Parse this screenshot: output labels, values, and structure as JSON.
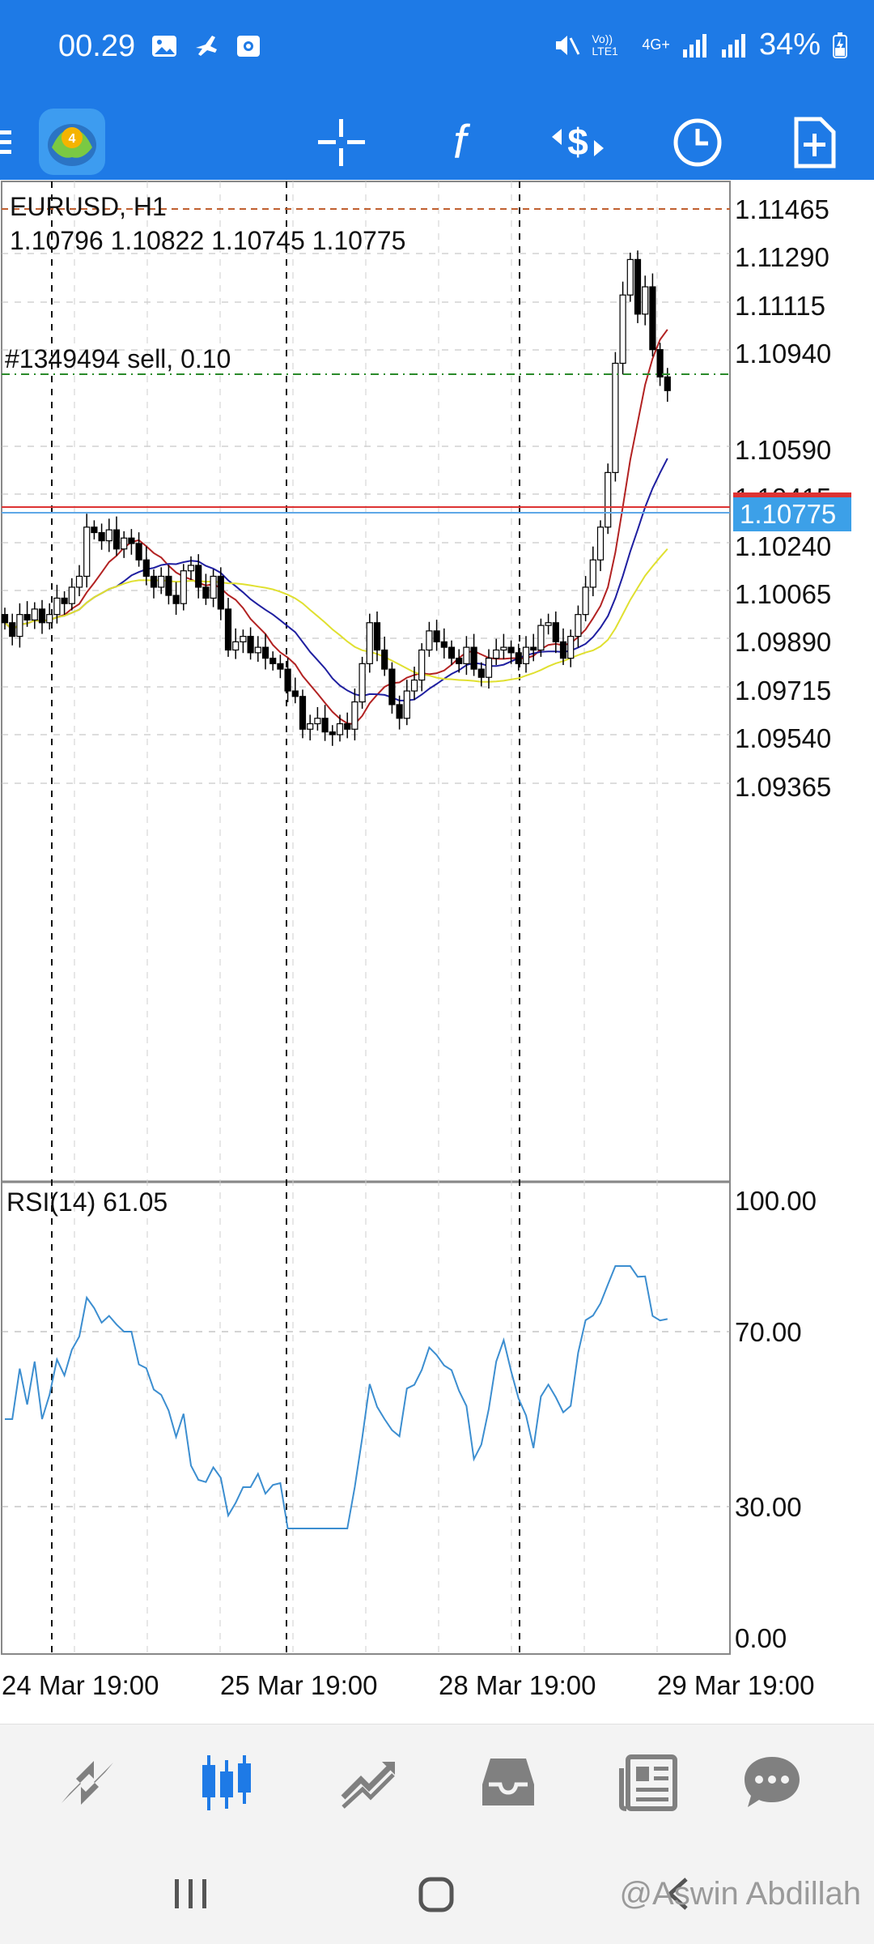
{
  "status_bar": {
    "time": "00.29",
    "battery": "34%",
    "network": [
      "Vo)) LTE1",
      "4G+"
    ]
  },
  "toolbar": {
    "icons": [
      "menu-icon",
      "metatrader-logo",
      "crosshair-icon",
      "indicators-f-icon",
      "trade-icon",
      "timeframe-clock-icon",
      "new-order-icon"
    ]
  },
  "chart": {
    "symbol_label": "EURUSD, H1",
    "ohlc": "1.10796 1.10822 1.10745 1.10775",
    "order_label": "#1349494 sell, 0.10",
    "price_ticks": [
      "1.11465",
      "1.11290",
      "1.11115",
      "1.10940",
      "1.10590",
      "1.10415",
      "1.10240",
      "1.10065",
      "1.09890",
      "1.09715",
      "1.09540",
      "1.09365"
    ],
    "current_price": "1.10775",
    "time_ticks": [
      "24 Mar 19:00",
      "25 Mar 19:00",
      "28 Mar 19:00",
      "29 Mar 19:00"
    ],
    "rsi_label": "RSI(14) 61.05",
    "rsi_ticks": [
      "100.00",
      "70.00",
      "30.00",
      "0.00"
    ],
    "colors": {
      "bull": "#ffffff",
      "bear": "#000000",
      "ma_fast": "#b22222",
      "ma_mid": "#1f1fa0",
      "ma_slow": "#e0e030",
      "rsi": "#3c8ed0",
      "order_line": "#2a8a2a",
      "bid_line": "#d33",
      "ask_line": "#3ca0e8",
      "accent": "#1e7ae6"
    }
  },
  "bottom_nav": {
    "items": [
      "quotes-icon",
      "chart-icon",
      "trade-icon",
      "history-icon",
      "news-icon",
      "chat-icon"
    ],
    "active": "chart-icon"
  },
  "watermark": "@Aswin Abdillah"
}
